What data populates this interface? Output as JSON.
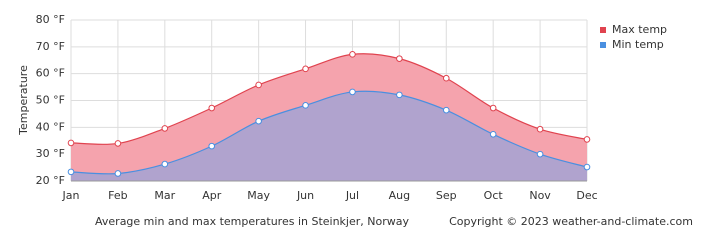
{
  "chart_data": {
    "type": "area-line",
    "y_label": "Temperature",
    "caption": "Average min and max temperatures in Steinkjer, Norway",
    "copyright": "Copyright © 2023  weather-and-climate.com",
    "categories": [
      "Jan",
      "Feb",
      "Mar",
      "Apr",
      "May",
      "Jun",
      "Jul",
      "Aug",
      "Sep",
      "Oct",
      "Nov",
      "Dec"
    ],
    "series": [
      {
        "name": "Max temp",
        "color": "#e0434f",
        "fill": "#f5a3ad",
        "values": [
          34.2,
          34,
          39.6,
          47.2,
          55.8,
          61.8,
          67.2,
          65.6,
          58.3,
          47.2,
          39.3,
          35.5
        ]
      },
      {
        "name": "Min temp",
        "color": "#4a8fe0",
        "fill": "#a9a3d2",
        "values": [
          23.4,
          22.8,
          26.3,
          33,
          42.3,
          48.2,
          53.2,
          52.1,
          46.4,
          37.4,
          30,
          25.2
        ]
      }
    ],
    "ylim": [
      20,
      80
    ],
    "yticks": [
      {
        "value": 20,
        "label": "20 °F"
      },
      {
        "value": 30,
        "label": "30 °F"
      },
      {
        "value": 40,
        "label": "40 °F"
      },
      {
        "value": 50,
        "label": "50 °F"
      },
      {
        "value": 60,
        "label": "60 °F"
      },
      {
        "value": 70,
        "label": "70 °F"
      },
      {
        "value": 80,
        "label": "80 °F"
      }
    ],
    "grid": true
  }
}
